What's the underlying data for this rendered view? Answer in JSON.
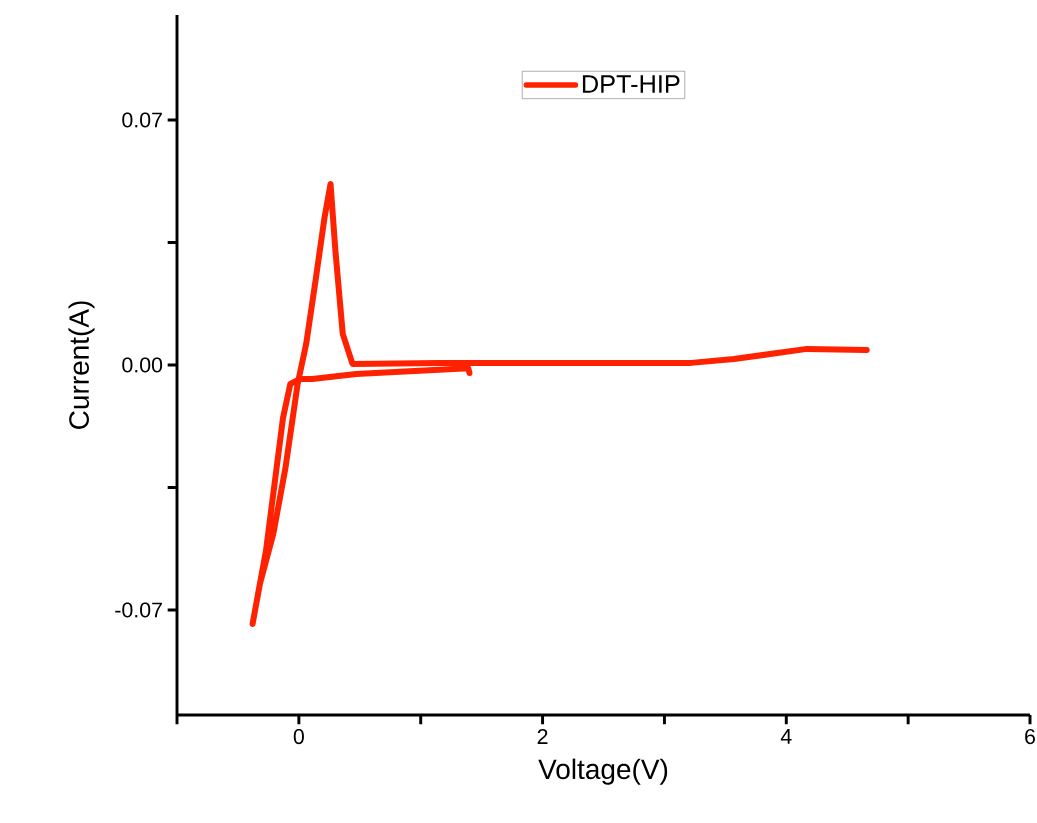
{
  "chart_data": {
    "type": "line",
    "xlabel": "Voltage(V)",
    "ylabel": "Current(A)",
    "xlim": [
      -1,
      6
    ],
    "ylim": [
      -0.1,
      0.1
    ],
    "xticks": [
      {
        "value": -1,
        "label": null
      },
      0,
      {
        "value": 1,
        "label": null
      },
      2,
      {
        "value": 3,
        "label": null
      },
      4,
      {
        "value": 5,
        "label": null
      },
      6
    ],
    "yticks": [
      {
        "value": -0.07,
        "label": "-0.07"
      },
      {
        "value": -0.035,
        "label": null
      },
      {
        "value": 0,
        "label": "0.00"
      },
      {
        "value": 0.035,
        "label": null
      },
      {
        "value": 0.07,
        "label": "0.07"
      }
    ],
    "grid": false,
    "legend": "top",
    "marker": "none",
    "line_style": "solid",
    "series": [
      {
        "name": "DPT-HIP",
        "color": "#ff2200",
        "x": [
          1.4,
          1.39,
          0.47,
          0.11,
          0.01,
          -0.07,
          -0.13,
          -0.27,
          -0.38,
          -0.32,
          -0.21,
          -0.11,
          -0.01,
          0.06,
          0.14,
          0.21,
          0.26,
          0.3,
          0.36,
          0.44,
          1.15,
          3.22,
          3.57,
          4.17,
          4.66
        ],
        "values": [
          -0.0023,
          -0.0009,
          -0.0026,
          -0.004,
          -0.004,
          -0.0054,
          -0.0151,
          -0.0531,
          -0.074,
          -0.0626,
          -0.0483,
          -0.0294,
          -0.0054,
          0.006,
          0.0249,
          0.042,
          0.0517,
          0.0326,
          0.0089,
          0.0003,
          0.0006,
          0.0006,
          0.0017,
          0.0046,
          0.0043
        ]
      }
    ]
  }
}
